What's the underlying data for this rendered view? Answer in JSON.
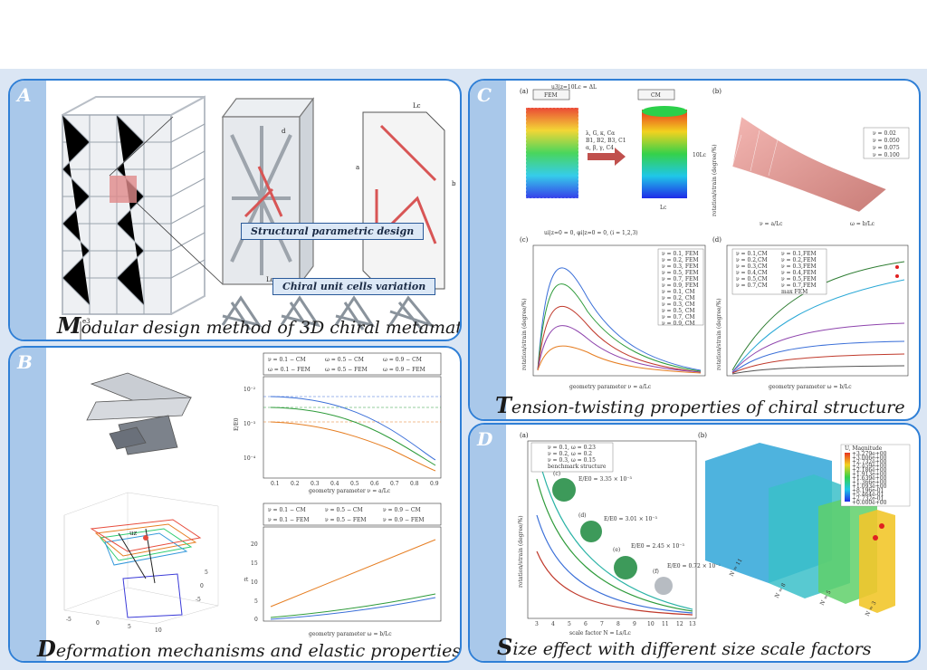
{
  "panels": {
    "A": {
      "letter": "A",
      "caption_first": "M",
      "caption_rest": "odular design method of 3D chiral metamaterials",
      "label_design": "Structural parametric design",
      "label_variation": "Chiral unit cells variation",
      "dims": {
        "lc": "Lc",
        "d": "d",
        "a": "a",
        "b": "b"
      },
      "axes": {
        "e1": "e1",
        "e2": "e2",
        "e3": "e3"
      }
    },
    "B": {
      "letter": "B",
      "caption_first": "D",
      "caption_rest": "eformation mechanisms and elastic properties",
      "legend_top": [
        "ν = 0.1 − CM",
        "ω = 0.5 − CM",
        "ω = 0.9 − CM",
        "ω = 0.1 − FEM",
        "ω = 0.5 − FEM",
        "ω = 0.9 − FEM"
      ],
      "legend_bottom": [
        "ν = 0.1 − CM",
        "ν = 0.5 − CM",
        "ν = 0.9 − CM",
        "ν = 0.1 − FEM",
        "ν = 0.5 − FEM",
        "ν = 0.9 − FEM"
      ],
      "top_ylabel": "E/E0",
      "top_xlabel": "geometry parameter  ν = a/Lc",
      "bottom_ylabel": "ℓt",
      "bottom_xlabel": "geometry parameter  ω = b/Lc",
      "top_yticks": [
        "10⁻²",
        "10⁻³",
        "10⁻⁴"
      ],
      "xticks": [
        "0.1",
        "0.2",
        "0.3",
        "0.4",
        "0.5",
        "0.6",
        "0.7",
        "0.8",
        "0.9"
      ],
      "bottom_yticks": [
        "0",
        "5",
        "10",
        "15",
        "20"
      ],
      "plot3d_ticks": {
        "z": [
          "-5",
          "0",
          "5",
          "10"
        ],
        "y": [
          "-5",
          "0",
          "5",
          "10"
        ]
      },
      "u_label": "uz"
    },
    "C": {
      "letter": "C",
      "caption_first": "T",
      "caption_rest": "ension-twisting properties of chiral structure",
      "sub_a": "(a)",
      "sub_b": "(b)",
      "sub_c": "(c)",
      "sub_d": "(d)",
      "fem_label": "FEM",
      "cm_label": "CM",
      "bc_top": "u3|z=10Lc = ΔL",
      "bc_bottom": "ui|z=0 = 0, φi|z=0 = 0, (i = 1,2,3)",
      "params": [
        "λ, G, κ, Cα",
        "B1, B2, B3, C1",
        "α, β, γ, C4"
      ],
      "height_label": "10Lc",
      "width_label": "Lc",
      "b_legend": [
        "ν = 0.02",
        "ν = 0.050",
        "ν = 0.075",
        "ν = 0.100"
      ],
      "b_zlabel": "rotation/strain (degree/%)",
      "b_xlabel": "ν = a/Lc",
      "b_ylabel": "ω = b/Lc",
      "c_legend": [
        "ν = 0.1, FEM",
        "ν = 0.2, FEM",
        "ν = 0.3, FEM",
        "ν = 0.5, FEM",
        "ν = 0.7, FEM",
        "ν = 0.9, FEM",
        "ν = 0.1, CM",
        "ν = 0.2, CM",
        "ν = 0.3, CM",
        "ν = 0.5, CM",
        "ν = 0.7, CM",
        "ν = 0.9, CM"
      ],
      "d_legend": [
        "ν = 0.1,CM",
        "ν = 0.2,CM",
        "ν = 0.3,CM",
        "ν = 0.4,CM",
        "ν = 0.5,CM",
        "ν = 0.7,CM",
        "ν = 0.1,FEM",
        "ν = 0.2,FEM",
        "ν = 0.3,FEM",
        "ν = 0.4,FEM",
        "ν = 0.5,FEM",
        "ν = 0.7,FEM",
        "max FEM"
      ],
      "c_ylabel": "rotation/strain (degree/%)",
      "c_xlabel": "geometry parameter  ν = a/Lc",
      "d_ylabel": "rotation/strain (degree/%)",
      "d_xlabel": "geometry parameter  ω = b/Lc",
      "c_yticks": [
        "0",
        "2",
        "4",
        "6",
        "8",
        "10",
        "12",
        "14"
      ],
      "d_yticks": [
        "0",
        "2",
        "4",
        "6",
        "8",
        "10",
        "12",
        "14"
      ],
      "xticks": [
        "0.1",
        "0.2",
        "0.3",
        "0.4",
        "0.5",
        "0.6",
        "0.7",
        "0.8",
        "0.9"
      ]
    },
    "D": {
      "letter": "D",
      "caption_first": "S",
      "caption_rest": "ize effect with different size scale factors",
      "sub_a": "(a)",
      "sub_b": "(b)",
      "legend": [
        "ν = 0.1, ω = 0.23",
        "ν = 0.2, ω = 0.2",
        "ν = 0.3, ω = 0.15",
        "benchmark structure"
      ],
      "ylabel": "rotation/strain (degree/%)",
      "xlabel": "scale factor  N = Ls/Lc",
      "xticks": [
        "3",
        "4",
        "5",
        "6",
        "7",
        "8",
        "9",
        "10",
        "11",
        "12",
        "13"
      ],
      "insets": [
        {
          "tag": "(c)",
          "text": "E/E0 = 3.35 × 10⁻³"
        },
        {
          "tag": "(d)",
          "text": "E/E0 = 3.01 × 10⁻³"
        },
        {
          "tag": "(e)",
          "text": "E/E0 = 2.45 × 10⁻³"
        },
        {
          "tag": "(f)",
          "text": "E/E0 = 0.72 × 10⁻³"
        }
      ],
      "cbar_title": "U, Magnitude",
      "cbar_values": [
        "+3.279e+00",
        "+3.006e+00",
        "+2.732e+00",
        "+2.459e+00",
        "+2.186e+00",
        "+1.913e+00",
        "+1.639e+00",
        "+1.366e+00",
        "+1.093e+00",
        "+8.196e-01",
        "+5.464e-01",
        "+2.732e-01",
        "+0.000e+00"
      ],
      "n_labels": [
        "N = 11",
        "N = 8",
        "N = 5",
        "N = 3"
      ]
    }
  }
}
